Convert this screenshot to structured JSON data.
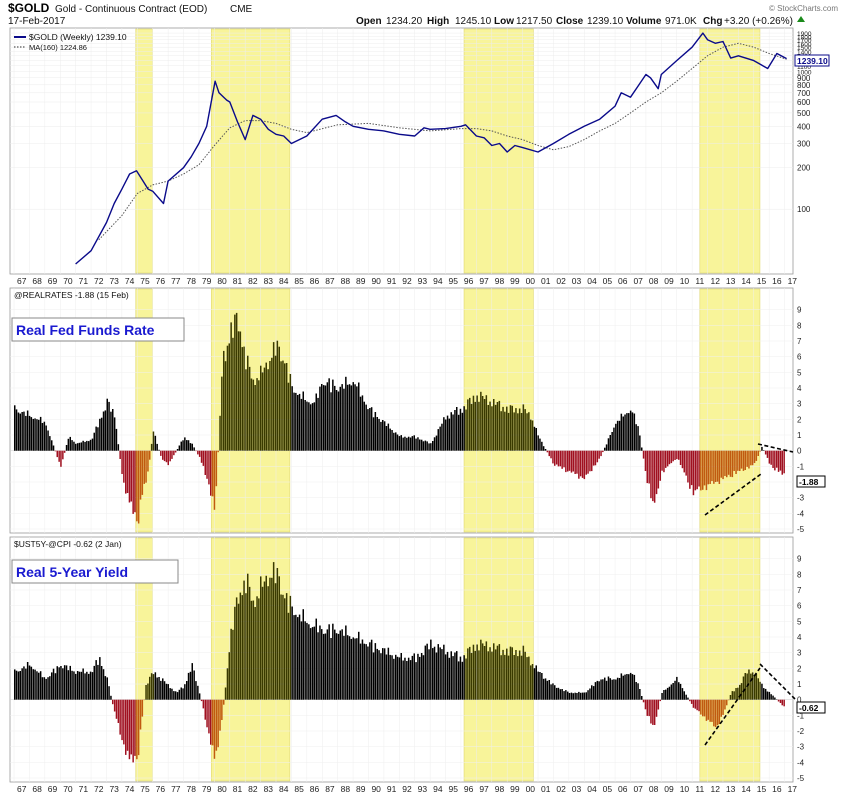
{
  "header": {
    "symbol": "$GOLD",
    "description": "Gold - Continuous Contract (EOD)",
    "exchange": "CME",
    "date": "17-Feb-2017",
    "open_label": "Open",
    "open_value": "1234.20",
    "high_label": "High",
    "high_value": "1245.10",
    "low_label": "Low",
    "low_value": "1217.50",
    "close_label": "Close",
    "close_value": "1239.10",
    "volume_label": "Volume",
    "volume_value": "971.0K",
    "chg_label": "Chg",
    "chg_value": "+3.20 (+0.26%)",
    "chg_icon": "triangle-up-icon",
    "watermark": "© StockCharts.com"
  },
  "colors": {
    "gold_line": "#0a0a8a",
    "ma_line": "#555555",
    "highlight": "#f8f49a",
    "positive_bar": "#000000",
    "negative_bar": "#a01020",
    "positive_bar_in_zone": "#3a3a00",
    "negative_bar_in_zone": "#c05a10",
    "callout_text": "#1a1ad0"
  },
  "x_axis": {
    "years": [
      "67",
      "68",
      "69",
      "70",
      "71",
      "72",
      "73",
      "74",
      "75",
      "76",
      "77",
      "78",
      "79",
      "80",
      "81",
      "82",
      "83",
      "84",
      "85",
      "86",
      "87",
      "88",
      "89",
      "90",
      "91",
      "92",
      "93",
      "94",
      "95",
      "96",
      "97",
      "98",
      "99",
      "00",
      "01",
      "02",
      "03",
      "04",
      "05",
      "06",
      "07",
      "08",
      "09",
      "10",
      "11",
      "12",
      "13",
      "14",
      "15",
      "16",
      "17"
    ]
  },
  "highlights": [
    {
      "start": 1974.9,
      "end": 1976.0
    },
    {
      "start": 1979.8,
      "end": 1984.9
    },
    {
      "start": 1996.2,
      "end": 2000.7
    },
    {
      "start": 2011.5,
      "end": 2015.4
    }
  ],
  "chart_data": [
    {
      "type": "line",
      "legend": [
        {
          "label": "$GOLD (Weekly) 1239.10",
          "style": "solid"
        },
        {
          "label": "MA(160) 1224.86",
          "style": "dotted"
        }
      ],
      "y_scale": "log",
      "y_ticks": [
        100,
        200,
        300,
        400,
        500,
        600,
        700,
        800,
        900,
        1000,
        1100,
        1200,
        1300,
        1400,
        1500,
        1600,
        1700,
        1800,
        1900
      ],
      "last_value_label": "1239.10",
      "series": [
        {
          "name": "$GOLD (Weekly)",
          "x": [
            1971.0,
            1972.0,
            1973.0,
            1973.5,
            1974.0,
            1974.5,
            1974.95,
            1975.3,
            1975.7,
            1976.0,
            1976.7,
            1977.0,
            1978.0,
            1978.5,
            1979.0,
            1979.5,
            1980.05,
            1980.3,
            1980.8,
            1981.0,
            1981.5,
            1982.0,
            1982.5,
            1983.0,
            1983.5,
            1984.0,
            1984.5,
            1985.0,
            1986.0,
            1987.0,
            1987.9,
            1988.5,
            1989.0,
            1990.0,
            1991.0,
            1992.0,
            1993.0,
            1993.6,
            1994.0,
            1995.0,
            1996.0,
            1996.3,
            1997.0,
            1997.5,
            1998.0,
            1998.5,
            1999.0,
            1999.5,
            2000.0,
            2001.0,
            2002.0,
            2003.0,
            2004.0,
            2005.0,
            2006.0,
            2006.4,
            2007.0,
            2008.0,
            2008.3,
            2008.8,
            2009.0,
            2010.0,
            2011.0,
            2011.7,
            2012.0,
            2012.5,
            2013.0,
            2013.5,
            2014.0,
            2015.0,
            2015.9,
            2016.5,
            2017.13
          ],
          "values": [
            40,
            50,
            80,
            110,
            140,
            180,
            190,
            165,
            140,
            135,
            110,
            160,
            200,
            240,
            300,
            400,
            850,
            700,
            620,
            600,
            430,
            320,
            480,
            450,
            380,
            350,
            340,
            300,
            340,
            450,
            480,
            430,
            400,
            380,
            370,
            350,
            340,
            390,
            380,
            385,
            400,
            410,
            340,
            330,
            290,
            300,
            260,
            290,
            280,
            260,
            300,
            350,
            400,
            450,
            560,
            700,
            650,
            950,
            900,
            750,
            950,
            1200,
            1500,
            1900,
            1700,
            1600,
            1650,
            1250,
            1300,
            1200,
            1050,
            1350,
            1239.1
          ]
        },
        {
          "name": "MA(160)",
          "x": [
            1972.5,
            1974.0,
            1975.0,
            1976.0,
            1977.0,
            1978.0,
            1979.0,
            1980.0,
            1981.0,
            1982.0,
            1983.0,
            1984.0,
            1985.0,
            1986.0,
            1988.0,
            1990.0,
            1992.0,
            1994.0,
            1996.0,
            1997.0,
            1998.0,
            1999.0,
            2000.0,
            2001.0,
            2002.0,
            2003.0,
            2004.0,
            2005.0,
            2006.0,
            2007.0,
            2008.0,
            2009.0,
            2010.0,
            2011.0,
            2012.0,
            2013.0,
            2014.0,
            2015.0,
            2016.0,
            2017.13
          ],
          "values": [
            60,
            90,
            130,
            150,
            160,
            180,
            210,
            290,
            390,
            440,
            440,
            420,
            380,
            360,
            410,
            420,
            390,
            370,
            385,
            385,
            370,
            340,
            320,
            290,
            270,
            285,
            320,
            370,
            420,
            500,
            600,
            700,
            850,
            1050,
            1300,
            1500,
            1600,
            1500,
            1350,
            1224.86
          ]
        }
      ]
    },
    {
      "type": "bar",
      "legend": [
        {
          "label": "@REALRATES -1.88 (15 Feb)"
        }
      ],
      "callout": "Real Fed Funds Rate",
      "ylim": [
        -5,
        10
      ],
      "y_ticks": [
        -5,
        -4,
        -3,
        -2,
        -1,
        0,
        1,
        2,
        3,
        4,
        5,
        6,
        7,
        8,
        9
      ],
      "last_value_label": "-1.88",
      "x": [
        1967,
        1968,
        1969,
        1970,
        1970.5,
        1971,
        1972,
        1973,
        1973.5,
        1974,
        1974.5,
        1975,
        1975.3,
        1975.6,
        1976,
        1976.5,
        1977,
        1978,
        1978.5,
        1979,
        1979.5,
        1980,
        1980.5,
        1981,
        1981.5,
        1982,
        1982.5,
        1983,
        1984,
        1984.5,
        1985,
        1986,
        1986.5,
        1987,
        1988,
        1989,
        1990,
        1991,
        1992,
        1993,
        1994,
        1995,
        1996,
        1997,
        1998,
        1999,
        2000,
        2000.5,
        2001,
        2002,
        2003,
        2004,
        2005,
        2006,
        2007,
        2007.5,
        2008,
        2008.5,
        2009,
        2010,
        2011,
        2012,
        2013,
        2014,
        2015,
        2015.5,
        2016,
        2017
      ],
      "values": [
        3,
        2.5,
        2.0,
        -1.2,
        1.0,
        0.5,
        0.8,
        3.5,
        2.5,
        -2.0,
        -4.0,
        -5.0,
        -3.0,
        -2.0,
        1.5,
        -0.5,
        -1.0,
        1.0,
        0.5,
        -0.5,
        -2.0,
        -4.5,
        6.5,
        8.5,
        9.5,
        6.5,
        5.0,
        5.5,
        7.5,
        6.5,
        4.5,
        3.5,
        3.5,
        5.0,
        4.5,
        5.0,
        3.0,
        2.0,
        1.0,
        1.0,
        0.5,
        2.5,
        3.0,
        4.0,
        3.5,
        3.0,
        3.0,
        2.5,
        1.0,
        -1.0,
        -1.5,
        -2.0,
        -0.5,
        2.0,
        3.0,
        1.5,
        -2.0,
        -4.0,
        -1.5,
        -0.5,
        -3.0,
        -2.5,
        -2.0,
        -1.5,
        -1.0,
        0.3,
        -1.0,
        -1.88
      ]
    },
    {
      "type": "bar",
      "legend": [
        {
          "label": "$UST5Y-@CPI -0.62 (2 Jan)"
        }
      ],
      "callout": "Real 5-Year Yield",
      "ylim": [
        -5,
        10
      ],
      "y_ticks": [
        -5,
        -4,
        -3,
        -2,
        -1,
        0,
        1,
        2,
        3,
        4,
        5,
        6,
        7,
        8,
        9
      ],
      "last_value_label": "-0.62",
      "x": [
        1967,
        1968,
        1969,
        1970,
        1971,
        1972,
        1972.5,
        1973,
        1973.5,
        1974,
        1974.5,
        1975,
        1975.5,
        1976,
        1976.5,
        1977,
        1977.5,
        1978,
        1978.5,
        1979,
        1979.5,
        1980,
        1980.5,
        1981,
        1981.5,
        1982,
        1982.5,
        1983,
        1983.5,
        1984,
        1984.5,
        1985,
        1986,
        1987,
        1988,
        1989,
        1990,
        1991,
        1992,
        1993,
        1994,
        1995,
        1996,
        1997,
        1998,
        1999,
        2000,
        2001,
        2002,
        2003,
        2004,
        2005,
        2006,
        2007,
        2007.5,
        2008,
        2008.5,
        2009,
        2010,
        2011,
        2012,
        2012.5,
        2013,
        2013.5,
        2014,
        2014.5,
        2015,
        2015.5,
        2016,
        2017
      ],
      "values": [
        2,
        2.5,
        1.5,
        2.5,
        2.0,
        2.0,
        3.0,
        1.5,
        -1.0,
        -3.0,
        -4.5,
        -4.0,
        1.0,
        2.0,
        1.5,
        1.0,
        0.5,
        1.0,
        2.5,
        0.5,
        -2.0,
        -4.5,
        -1.0,
        4.5,
        7.5,
        8.5,
        7.0,
        8.0,
        9.0,
        9.0,
        7.5,
        6.5,
        5.5,
        5.0,
        5.0,
        4.5,
        4.0,
        3.5,
        3.0,
        3.0,
        4.0,
        3.5,
        3.0,
        4.0,
        3.8,
        3.5,
        3.5,
        2.0,
        1.0,
        0.5,
        0.5,
        1.5,
        1.5,
        2.0,
        1.0,
        -1.0,
        -2.0,
        0.5,
        1.5,
        -0.5,
        -1.5,
        -2.0,
        -1.0,
        0.5,
        1.0,
        2.0,
        2.0,
        1.0,
        0.5,
        -0.62
      ]
    }
  ]
}
